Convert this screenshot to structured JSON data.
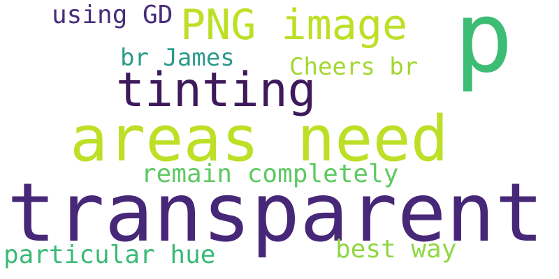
{
  "words": {
    "using_gd": {
      "text": "using GD",
      "color": "#472d7b"
    },
    "png_image": {
      "text": "PNG image",
      "color": "#bddf26"
    },
    "p": {
      "text": "p",
      "color": "#3dbc74"
    },
    "br_james": {
      "text": "br James",
      "color": "#2a9a8b"
    },
    "cheers_br": {
      "text": "Cheers br",
      "color": "#a2d82f"
    },
    "tinting": {
      "text": "tinting",
      "color": "#3e1a5c"
    },
    "areas_need": {
      "text": "areas need",
      "color": "#bddf26"
    },
    "remain_completely": {
      "text": "remain completely",
      "color": "#5ec962"
    },
    "transparent": {
      "text": "transparent",
      "color": "#472777"
    },
    "particular_hue": {
      "text": "particular hue",
      "color": "#3aba76"
    },
    "best_way": {
      "text": "best way",
      "color": "#8fd744"
    }
  }
}
